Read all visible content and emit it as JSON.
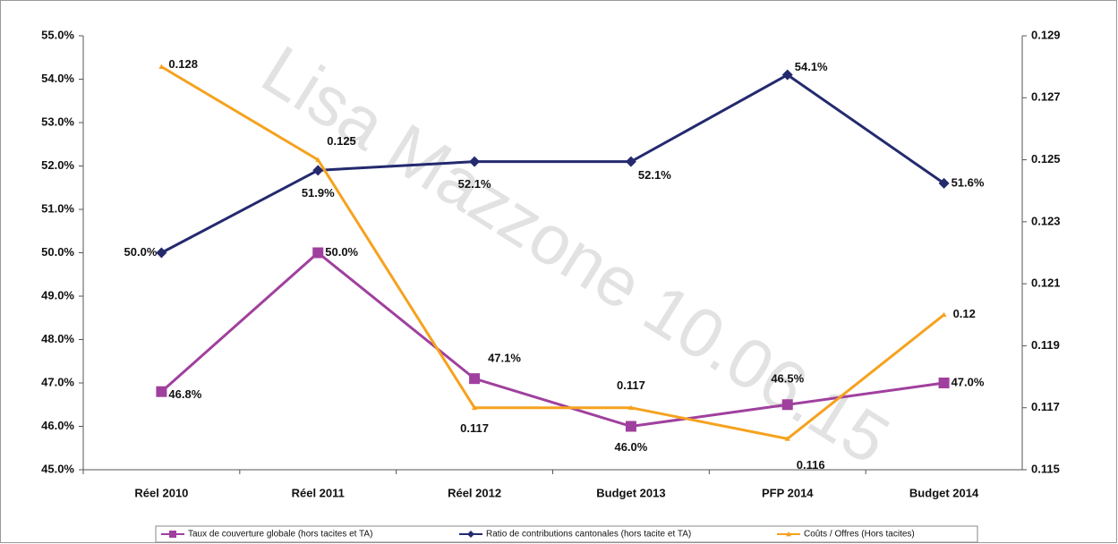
{
  "chart_data": {
    "type": "line",
    "watermark": "Lisa Mazzone 10.06.15",
    "categories": [
      "Réel 2010",
      "Réel 2011",
      "Réel 2012",
      "Budget 2013",
      "PFP 2014",
      "Budget 2014"
    ],
    "series": [
      {
        "name": "Taux de couverture globale (hors tacites et TA)",
        "color": "#a0409e",
        "marker": "square",
        "values": [
          46.8,
          50.0,
          47.1,
          46.0,
          46.5,
          47.0
        ],
        "value_labels": [
          "46.8%",
          "50.0%",
          "47.1%",
          "46.0%",
          "46.5%",
          "47.0%"
        ]
      },
      {
        "name": "Ratio de contributions cantonales (hors tacite et TA)",
        "color": "#232a6e",
        "marker": "diamond",
        "values": [
          50.0,
          51.9,
          52.1,
          52.1,
          54.1,
          51.6
        ],
        "value_labels": [
          "50.0%",
          "51.9%",
          "52.1%",
          "52.1%",
          "54.1%",
          "51.6%"
        ]
      },
      {
        "name": "Coûts / Offres (Hors tacites)",
        "color": "#f5a21f",
        "marker": "triangle",
        "axis": "y2",
        "values": [
          0.128,
          0.125,
          0.117,
          0.117,
          0.116,
          0.12
        ]
      }
    ],
    "ylim": [
      45,
      55
    ],
    "yticks": [
      {
        "value": 45,
        "label": "45.0%"
      },
      {
        "value": 46,
        "label": "46.0%"
      },
      {
        "value": 47,
        "label": "47.0%"
      },
      {
        "value": 48,
        "label": "48.0%"
      },
      {
        "value": 49,
        "label": "49.0%"
      },
      {
        "value": 50,
        "label": "50.0%"
      },
      {
        "value": 51,
        "label": "51.0%"
      },
      {
        "value": 52,
        "label": "52.0%"
      },
      {
        "value": 53,
        "label": "53.0%"
      },
      {
        "value": 54,
        "label": "54.0%"
      },
      {
        "value": 55,
        "label": "55.0%"
      }
    ],
    "y2lim": [
      0.115,
      0.129
    ],
    "y2ticks": [
      0.115,
      0.117,
      0.119,
      0.121,
      0.123,
      0.125,
      0.127,
      0.129
    ],
    "legend": "bottom"
  }
}
